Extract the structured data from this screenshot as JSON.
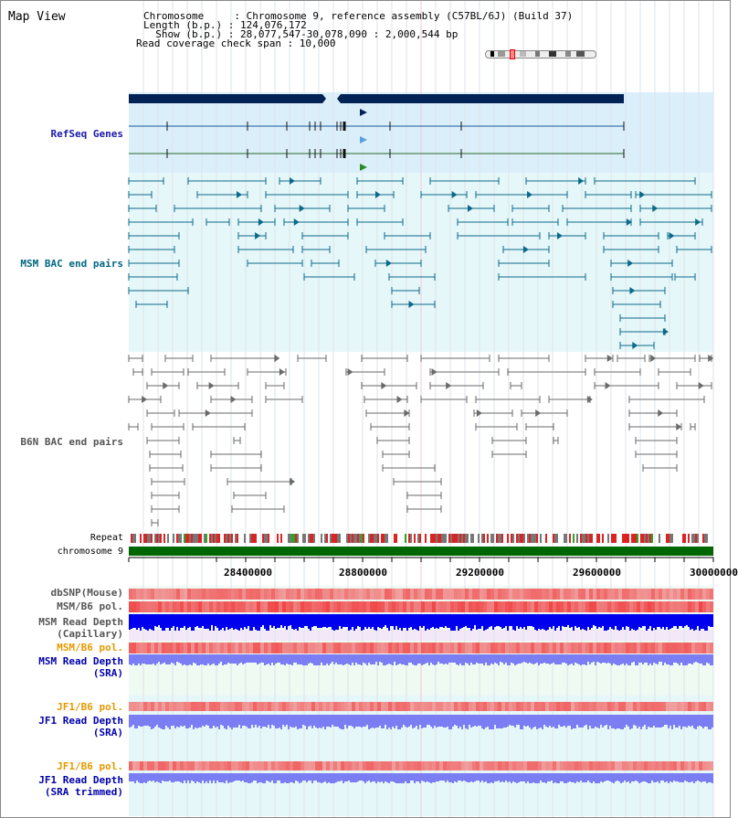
{
  "map_title": "Map View",
  "header": {
    "chromosome_line": "Chromosome     : Chromosome 9, reference assembly (C57BL/6J) (Build 37)",
    "length_line": "Length (b.p.) : 124,076,172",
    "show_line": "  Show (b.p.) : 28,077,547-30,078,090 : 2,000,544 bp",
    "coverage_line": "Read coverage check span : 10,000"
  },
  "tracks": {
    "refseq": "RefSeq Genes",
    "msm_bac": "MSM BAC end pairs",
    "b6n_bac": "B6N BAC end pairs",
    "repeat": "Repeat",
    "chromosome": "chromosome 9",
    "dbsnp": "dbSNP(Mouse)",
    "msm_b6_pol": "MSM/B6 pol.",
    "msm_depth_cap_1": "MSM Read Depth",
    "msm_depth_cap_2": "(Capillary)",
    "msm_b6_pol_sra": "MSM/B6 pol.",
    "msm_depth_sra_1": "MSM Read Depth",
    "msm_depth_sra_2": "(SRA)",
    "jf1_b6_pol_1": "JF1/B6 pol.",
    "jf1_depth_sra_1": "JF1 Read Depth",
    "jf1_depth_sra_2": "(SRA)",
    "jf1_b6_pol_2": "JF1/B6 pol.",
    "jf1_depth_trim_1": "JF1 Read Depth",
    "jf1_depth_trim_2": "(SRA trimmed)"
  },
  "axis_ticks": [
    "28400000",
    "28800000",
    "29200000",
    "29600000",
    "30000000"
  ],
  "colors": {
    "refseq_label": "#1a1aaa",
    "msm_label": "#006680",
    "b6n_label": "#555555",
    "orange_label": "#e69900",
    "blue_label": "#0000aa",
    "chromosome_bar": "#006600",
    "gene_bar": "#002255",
    "refseq_bg": "#dbeffb",
    "msm_bg": "#e6f7f9",
    "depth_blue": "#0000ee",
    "depth_light": "#7a7ef2"
  }
}
